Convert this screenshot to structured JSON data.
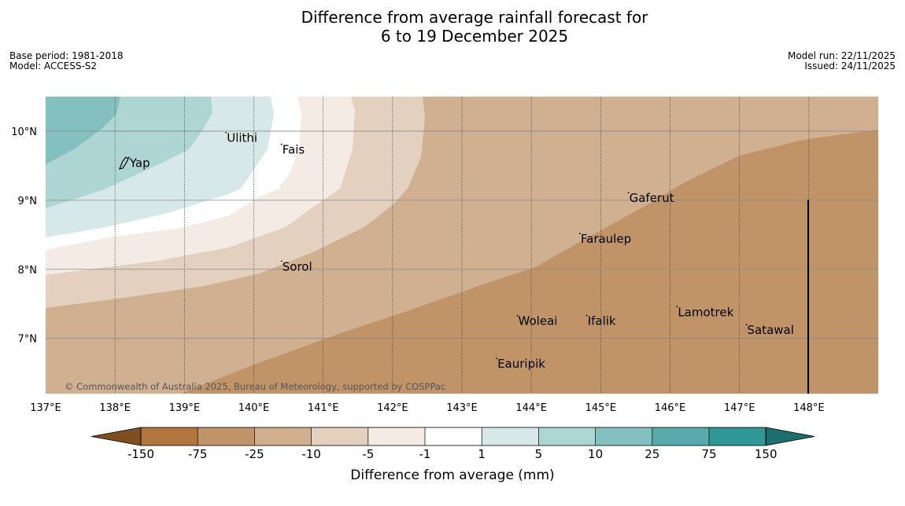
{
  "title": {
    "line1": "Difference from average rainfall forecast for",
    "line2": "6 to 19 December 2025"
  },
  "meta": {
    "base_period": "Base period: 1981-2018",
    "model": "Model: ACCESS-S2",
    "model_run": "Model run: 22/11/2025",
    "issued": "Issued: 24/11/2025"
  },
  "map": {
    "lon_min": 137,
    "lon_max": 149,
    "lat_min": 6.2,
    "lat_max": 10.5,
    "lon_labels": [
      "137°E",
      "138°E",
      "139°E",
      "140°E",
      "141°E",
      "142°E",
      "143°E",
      "144°E",
      "145°E",
      "146°E",
      "147°E",
      "148°E"
    ],
    "lat_labels": [
      "10°N",
      "9°N",
      "8°N",
      "7°N"
    ],
    "places": [
      {
        "name": "Yap",
        "lon": 138.2,
        "lat": 9.54
      },
      {
        "name": "Ulithi",
        "lon": 139.6,
        "lat": 9.9
      },
      {
        "name": "Fais",
        "lon": 140.4,
        "lat": 9.73
      },
      {
        "name": "Gaferut",
        "lon": 145.4,
        "lat": 9.03
      },
      {
        "name": "Faraulep",
        "lon": 144.7,
        "lat": 8.44
      },
      {
        "name": "Sorol",
        "lon": 140.4,
        "lat": 8.04
      },
      {
        "name": "Woleai",
        "lon": 143.8,
        "lat": 7.25
      },
      {
        "name": "Ifalik",
        "lon": 144.8,
        "lat": 7.25
      },
      {
        "name": "Lamotrek",
        "lon": 146.1,
        "lat": 7.38
      },
      {
        "name": "Satawal",
        "lon": 147.1,
        "lat": 7.12
      },
      {
        "name": "Eauripik",
        "lon": 143.5,
        "lat": 6.63
      }
    ],
    "copyright": "© Commonwealth of Australia 2025, Bureau of Meteorology, supported by COSPPac"
  },
  "colorbar": {
    "title": "Difference from average (mm)",
    "ticks": [
      "-150",
      "-75",
      "-25",
      "-10",
      "-5",
      "-1",
      "1",
      "5",
      "10",
      "25",
      "75",
      "150"
    ],
    "colors": [
      "#7f4f22",
      "#b0763d",
      "#c09368",
      "#d1b091",
      "#e3d0bf",
      "#f4ebe5",
      "#ffffff",
      "#d6e9e8",
      "#acd5d4",
      "#83c0bf",
      "#58abaa",
      "#2f9896",
      "#1e6e6d"
    ]
  }
}
